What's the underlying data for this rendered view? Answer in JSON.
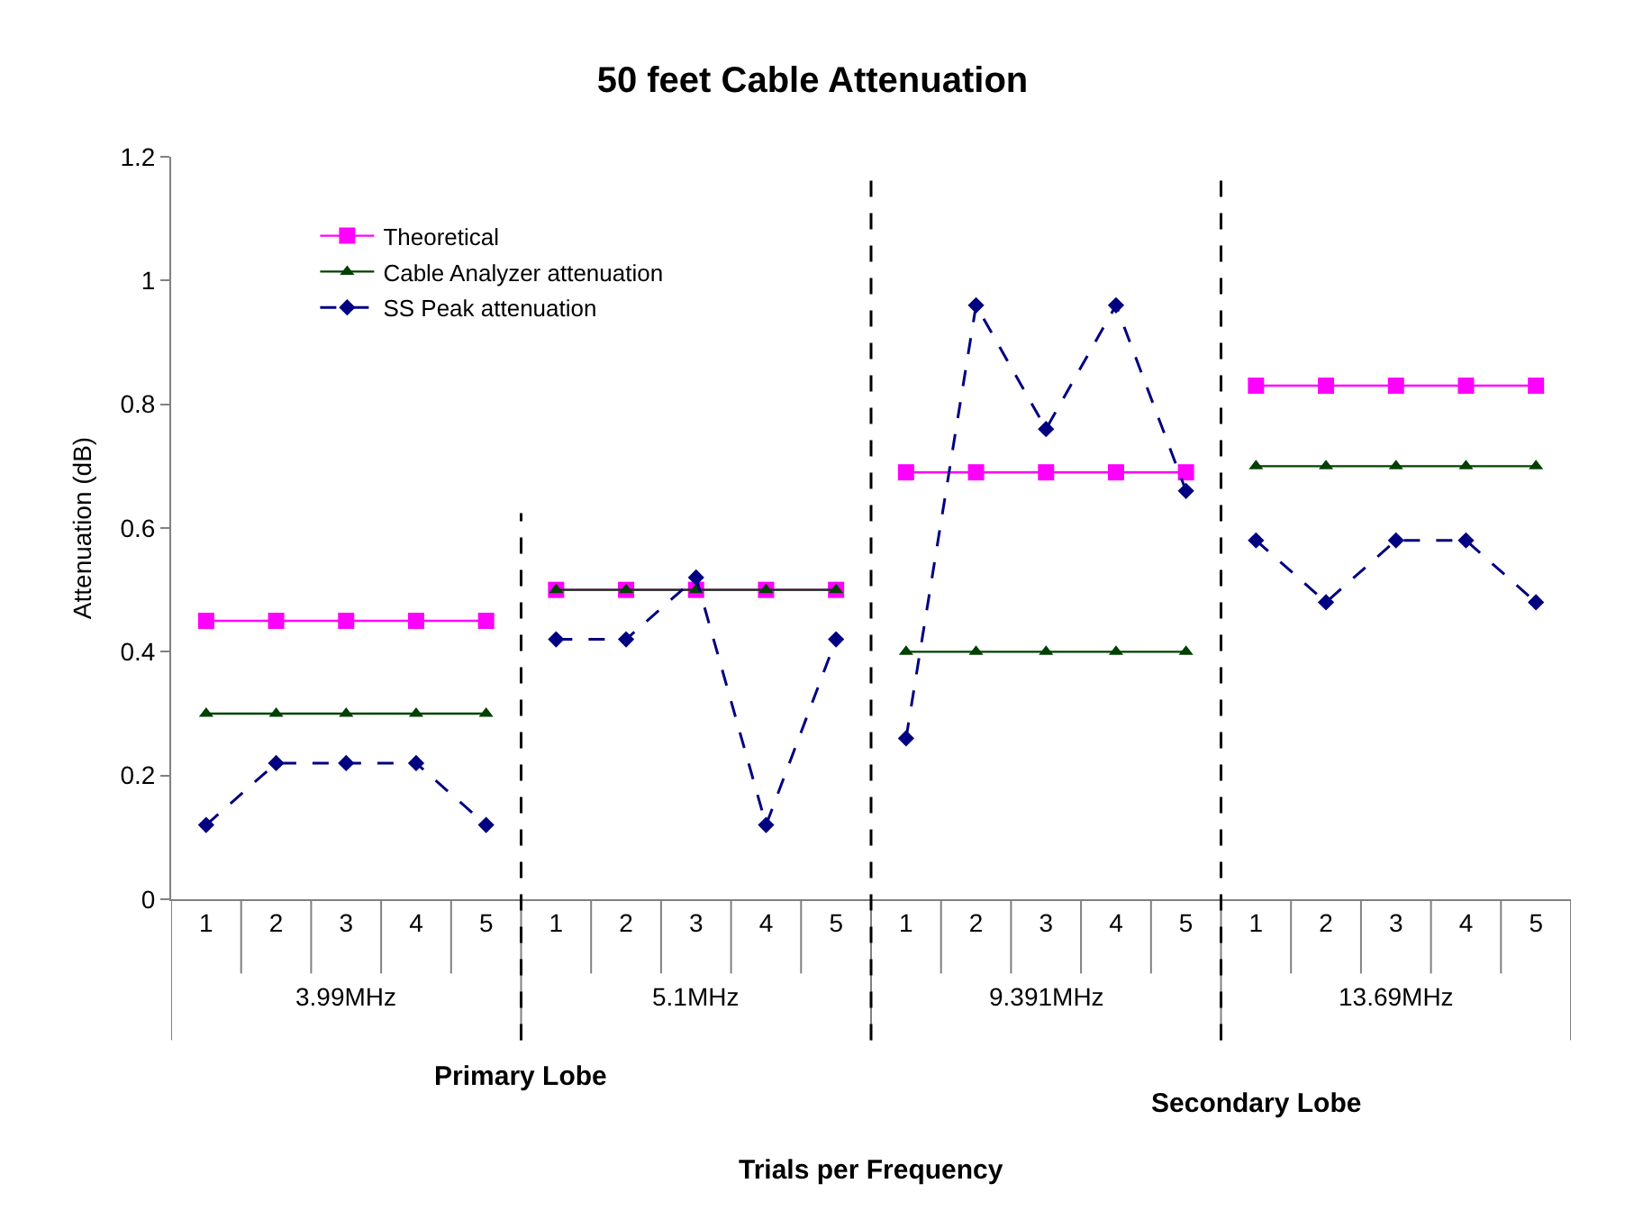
{
  "chart_data": {
    "type": "line",
    "title": "50 feet Cable Attenuation",
    "ylabel": "Attenuation (dB)",
    "categories": [
      "1",
      "2",
      "3",
      "4",
      "5",
      "1",
      "2",
      "3",
      "4",
      "5",
      "1",
      "2",
      "3",
      "4",
      "5",
      "1",
      "2",
      "3",
      "4",
      "5"
    ],
    "annotations": [
      "3.99MHz",
      "5.1MHz",
      "9.391MHz",
      "13.69MHz",
      "Primary Lobe",
      "Secondary Lobe",
      "Trials per Frequency"
    ],
    "series": [
      {
        "name": "Theoretical",
        "color": "#ff00ff",
        "marker": "square",
        "line_style": "solid",
        "values": [
          0.45,
          0.45,
          0.45,
          0.45,
          0.45,
          0.5,
          0.5,
          0.5,
          0.5,
          0.5,
          0.69,
          0.69,
          0.69,
          0.69,
          0.69,
          0.83,
          0.83,
          0.83,
          0.83,
          0.83
        ]
      },
      {
        "name": "Cable Analyzer attenuation",
        "color": "#004000",
        "marker": "triangle",
        "line_style": "solid",
        "values": [
          0.3,
          0.3,
          0.3,
          0.3,
          0.3,
          0.5,
          0.5,
          0.5,
          0.5,
          0.5,
          0.4,
          0.4,
          0.4,
          0.4,
          0.4,
          0.7,
          0.7,
          0.7,
          0.7,
          0.7
        ]
      },
      {
        "name": "SS Peak attenuation",
        "color": "#000080",
        "marker": "diamond",
        "line_style": "dashed",
        "values": [
          0.12,
          0.22,
          0.22,
          0.22,
          0.12,
          0.42,
          0.42,
          0.52,
          0.12,
          0.42,
          0.26,
          0.96,
          0.76,
          0.96,
          0.66,
          0.58,
          0.48,
          0.58,
          0.58,
          0.48
        ]
      }
    ],
    "ylim": [
      0,
      1.2
    ],
    "yticks": [
      0,
      0.2,
      0.4,
      0.6,
      0.8,
      1,
      1.2
    ],
    "legend": "top left"
  }
}
